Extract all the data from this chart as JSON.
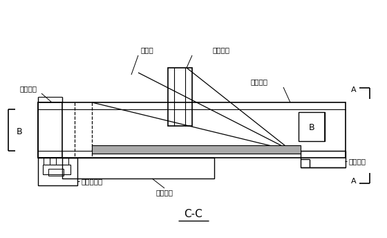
{
  "title": "C-C",
  "bg_color": "#ffffff",
  "line_color": "#000000",
  "gray_color": "#808080",
  "labels": {
    "yi_jiao": "已浇梁段",
    "dai_jiao": "待浇梁段",
    "xie_la": "斜拉索",
    "xingzou": "行走钩挂",
    "gongzuo": "工作平台",
    "hou_mao": "后锚座系统",
    "ye_ya": "液压装置",
    "B_left": "B",
    "B_right": "B",
    "A_top": "A",
    "A_bottom": "A"
  }
}
